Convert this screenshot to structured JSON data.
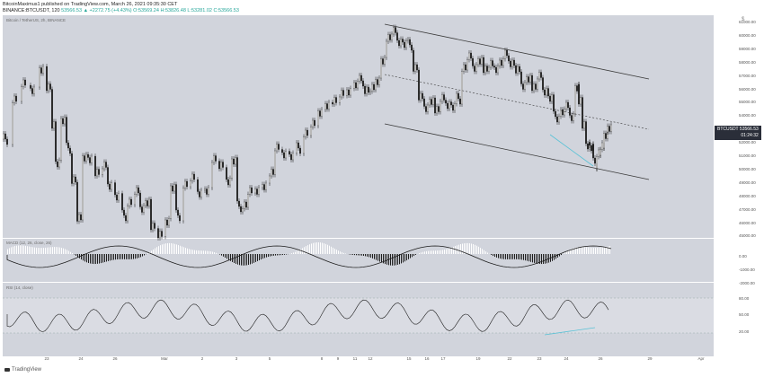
{
  "header": {
    "line1": "BitcoinMaximus1 published on TradingView.com, March 26, 2021 09:35:30 CET",
    "symbol_prefix": "BINANCE:BTCUSDT, 120",
    "ohlc": "53566.53 ▲ +2272.75 (+4.43%) O:53569.24 H:53826.48 L:53281.02 C:53566.53"
  },
  "chart_title": "Bitcoin / TetherUS, 2h, BINANCE",
  "price_axis": [
    "61000.00",
    "60000.00",
    "59000.00",
    "58000.00",
    "57000.00",
    "56000.00",
    "55000.00",
    "54000.00",
    "53000.00",
    "52000.00",
    "51000.00",
    "50000.00",
    "49000.00",
    "48000.00",
    "47000.00",
    "46000.00",
    "45000.00"
  ],
  "last_price": {
    "symbol": "BTCUSDT",
    "price": "53566.53",
    "countdown": "01:24:32"
  },
  "macd": {
    "label": "MACD (12, 26, close, 26)",
    "ticks": [
      "0.00",
      "-1000.00",
      "-2000.00"
    ]
  },
  "rsi": {
    "label": "RSI (14, close)",
    "ticks": [
      "80.00",
      "50.00",
      "20.00"
    ]
  },
  "time_axis": [
    "23",
    "24",
    "26",
    "Mar",
    "2",
    "3",
    "5",
    "8",
    "9",
    "11",
    "12",
    "15",
    "16",
    "17",
    "19",
    "22",
    "23",
    "24",
    "26",
    "29",
    "Apr"
  ],
  "branding": {
    "name": "TradingView"
  },
  "colors": {
    "pane": "#d1d4dc",
    "candle": "#1e1e1e",
    "line": "#3a3a3a",
    "divergence": "#59c2d6"
  }
}
